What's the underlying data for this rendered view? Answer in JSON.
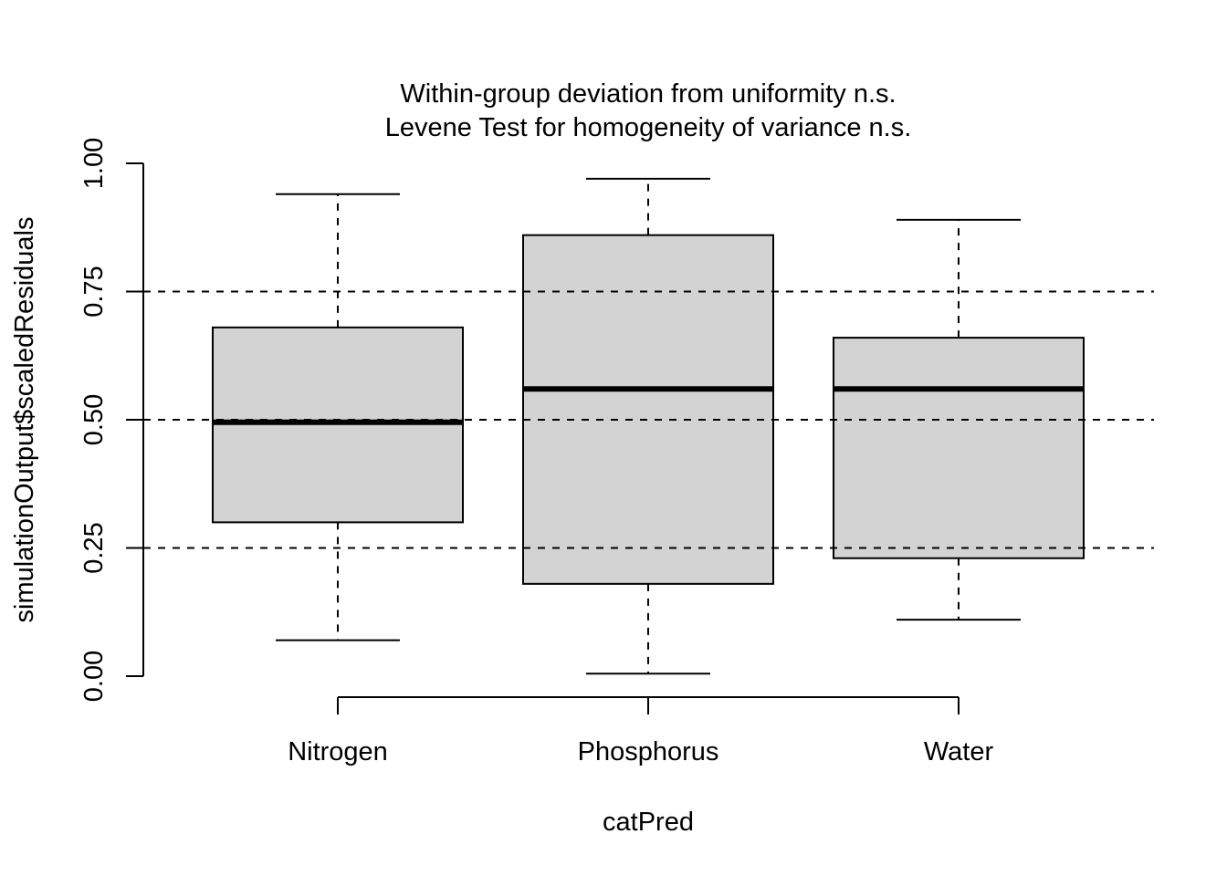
{
  "chart_data": {
    "type": "boxplot",
    "title_lines": [
      "Within-group deviation from uniformity n.s.",
      "Levene Test for homogeneity of variance n.s."
    ],
    "xlabel": "catPred",
    "ylabel": "simulationOutput$scaledResiduals",
    "ylim": [
      0,
      1
    ],
    "yticks": [
      0,
      0.25,
      0.5,
      0.75,
      1
    ],
    "ytick_labels": [
      "0.00",
      "0.25",
      "0.50",
      "0.75",
      "1.00"
    ],
    "categories": [
      "Nitrogen",
      "Phosphorus",
      "Water"
    ],
    "boxes": [
      {
        "category": "Nitrogen",
        "min": 0.07,
        "q1": 0.3,
        "median": 0.495,
        "q3": 0.68,
        "max": 0.94
      },
      {
        "category": "Phosphorus",
        "min": 0.005,
        "q1": 0.18,
        "median": 0.56,
        "q3": 0.86,
        "max": 0.97
      },
      {
        "category": "Water",
        "min": 0.11,
        "q1": 0.23,
        "median": 0.56,
        "q3": 0.66,
        "max": 0.89
      }
    ],
    "reference_lines": [
      0.25,
      0.5,
      0.75
    ],
    "box_fill": "#d3d3d3",
    "line_color": "#000000",
    "legend": "none"
  }
}
